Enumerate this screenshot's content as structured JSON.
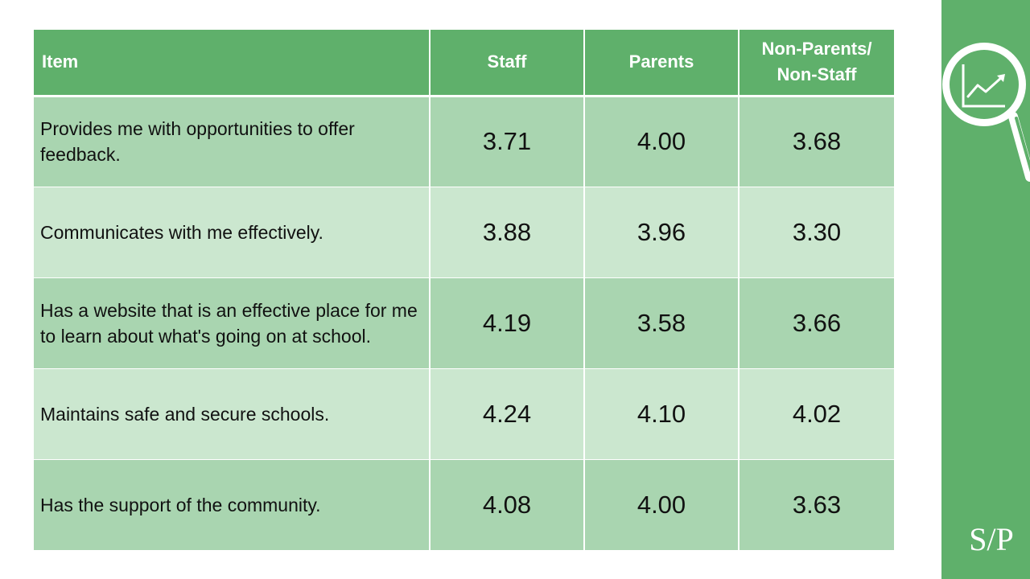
{
  "table": {
    "headers": {
      "item": "Item",
      "staff": "Staff",
      "parents": "Parents",
      "non_parents_line1": "Non-Parents/",
      "non_parents_line2": "Non-Staff"
    },
    "rows": [
      {
        "item": "Provides me with opportunities to offer feedback.",
        "staff": "3.71",
        "parents": "4.00",
        "non": "3.68"
      },
      {
        "item": "Communicates with me effectively.",
        "staff": "3.88",
        "parents": "3.96",
        "non": "3.30"
      },
      {
        "item": "Has a website that is an effective place for me to learn about what's going on at school.",
        "staff": "4.19",
        "parents": "3.58",
        "non": "3.66"
      },
      {
        "item": "Maintains safe and secure schools.",
        "staff": "4.24",
        "parents": "4.10",
        "non": "4.02"
      },
      {
        "item": "Has the support of the community.",
        "staff": "4.08",
        "parents": "4.00",
        "non": "3.63"
      }
    ]
  },
  "side_panel": {
    "icon": "magnifier-chart-icon",
    "logo_text": "S/P",
    "accent_color": "#5fb06b"
  }
}
